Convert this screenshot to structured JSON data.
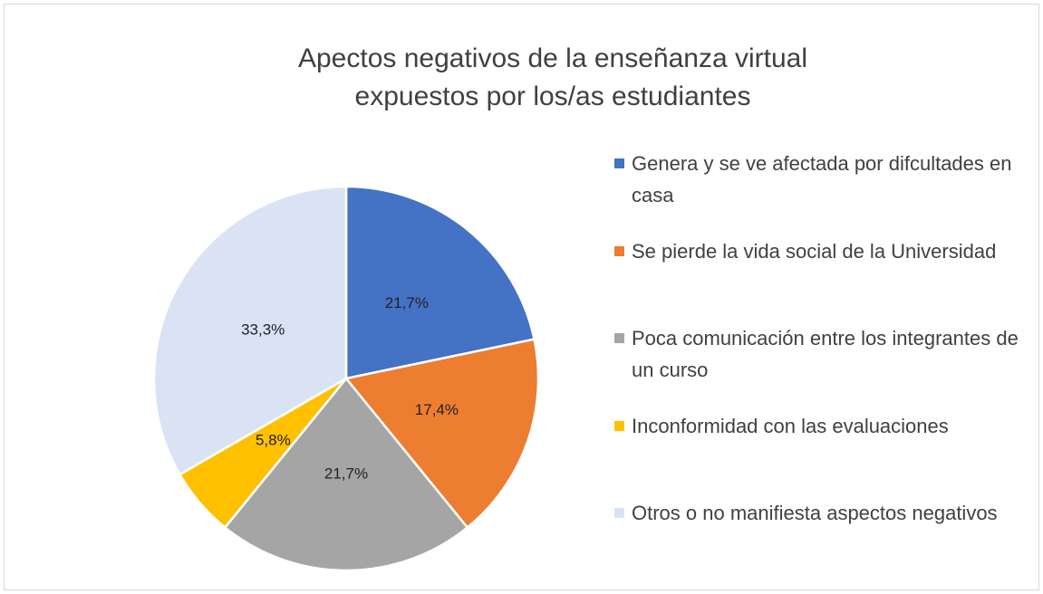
{
  "chart_data": {
    "type": "pie",
    "title": "Apectos negativos de la enseñanza virtual expuestos por los/as estudiantes",
    "categories": [
      "Genera y se ve afectada por difcultades en casa",
      "Se pierde la vida social de la Universidad",
      "Poca comunicación entre los integrantes de un curso",
      "Inconformidad con las evaluaciones",
      "Otros o no manifiesta aspectos negativos"
    ],
    "values": [
      21.7,
      17.4,
      21.7,
      5.8,
      33.3
    ],
    "value_labels": [
      "21,7%",
      "17,4%",
      "21,7%",
      "5,8%",
      "33,3%"
    ],
    "colors": [
      "#4472c4",
      "#ed7d31",
      "#a5a5a5",
      "#ffc000",
      "#dae3f3"
    ],
    "legend": "right"
  }
}
